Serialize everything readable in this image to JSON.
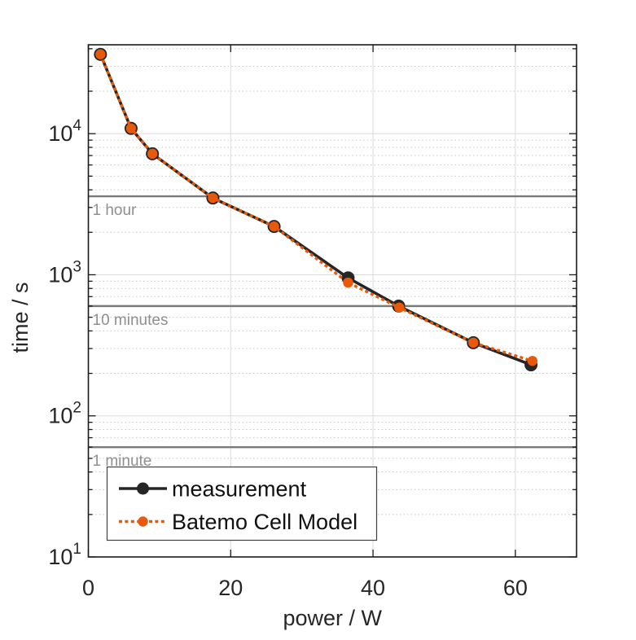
{
  "figure": {
    "background": "#ffffff",
    "axis_color": "#1a1a1a",
    "tick_label_color": "#262626",
    "grid_major_color": "#dbdbdb",
    "grid_minor_color": "#c8c8c8",
    "reference_line_color": "#7a7a7a",
    "reference_label_color": "#8f8f8f",
    "legend_border_color": "#404040",
    "legend_text_color": "#111111"
  },
  "chart_data": {
    "type": "line",
    "title": "",
    "xlabel": "power / W",
    "ylabel": "time / s",
    "xlim": [
      0,
      68.6
    ],
    "ylim_exp": [
      1,
      4.63
    ],
    "yscale": "log",
    "grid": "on",
    "x_ticks": {
      "values": [
        0,
        20,
        40,
        60
      ],
      "labels": [
        "0",
        "20",
        "40",
        "60"
      ]
    },
    "y_ticks": {
      "base": "10",
      "exponents": [
        1,
        2,
        3,
        4
      ]
    },
    "legend": {
      "position": "southwest-inside",
      "border": true
    },
    "series": [
      {
        "name": "measurement",
        "color": "#262626",
        "line_style": "solid",
        "marker": "circle",
        "points": [
          [
            1.7,
            36500
          ],
          [
            6.0,
            10900
          ],
          [
            9.0,
            7200
          ],
          [
            17.5,
            3500
          ],
          [
            26.1,
            2200
          ],
          [
            36.5,
            950
          ],
          [
            43.6,
            600
          ],
          [
            54.1,
            330
          ],
          [
            62.2,
            230
          ]
        ]
      },
      {
        "name": "Batemo Cell Model",
        "color": "#e8590c",
        "line_style": "dotted",
        "marker": "circle",
        "points": [
          [
            1.7,
            36500
          ],
          [
            6.0,
            10900
          ],
          [
            9.0,
            7200
          ],
          [
            17.5,
            3500
          ],
          [
            26.1,
            2200
          ],
          [
            36.5,
            880
          ],
          [
            43.7,
            585
          ],
          [
            54.1,
            330
          ],
          [
            62.4,
            245
          ]
        ]
      }
    ],
    "reference_lines": [
      {
        "label": "1 hour",
        "seconds": 3600
      },
      {
        "label": "10 minutes",
        "seconds": 600
      },
      {
        "label": "1 minute",
        "seconds": 60
      }
    ]
  }
}
